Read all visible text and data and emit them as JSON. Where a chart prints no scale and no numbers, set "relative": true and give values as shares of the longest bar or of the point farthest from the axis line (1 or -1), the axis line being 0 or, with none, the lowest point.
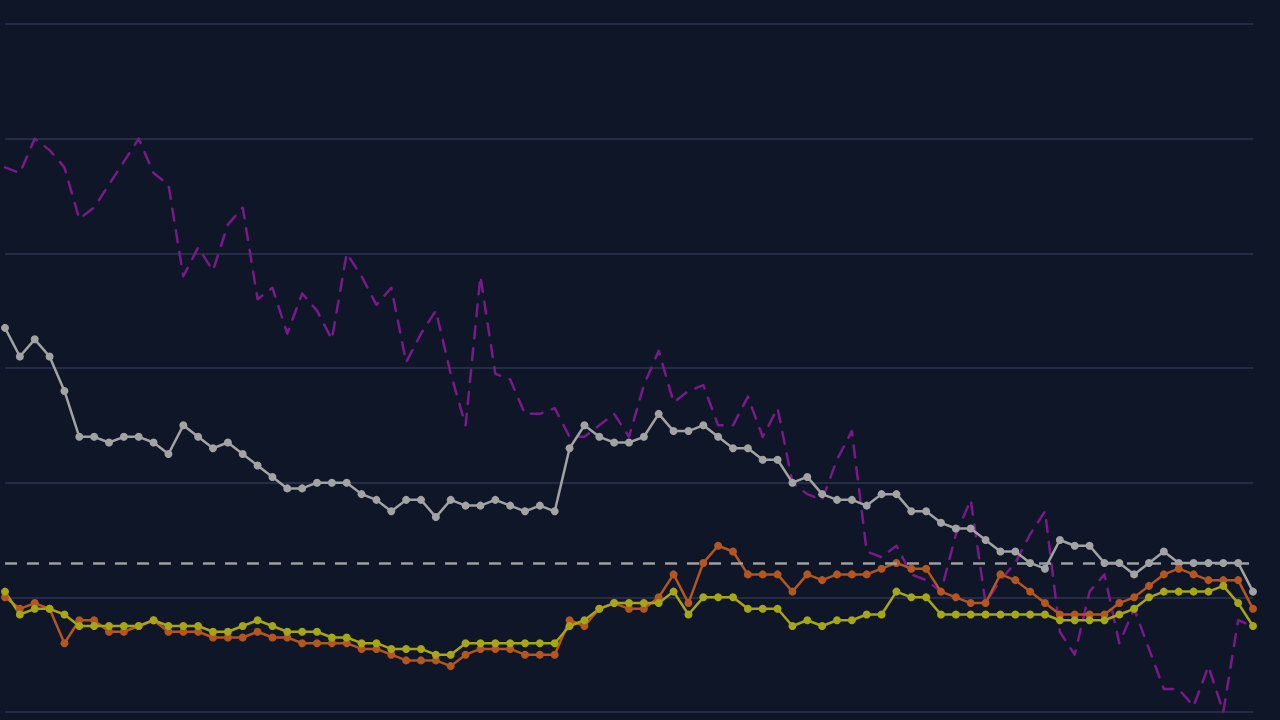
{
  "chart_data": {
    "type": "line",
    "relative": true,
    "grid": "y",
    "categories": [
      null,
      null,
      null,
      null,
      null,
      null,
      null,
      null,
      null,
      null,
      null,
      null,
      null,
      null,
      null,
      null,
      null,
      null,
      null,
      null,
      null,
      null,
      null,
      null,
      null,
      null,
      null,
      null,
      null,
      null,
      null,
      null,
      null,
      null,
      null,
      null,
      null,
      null,
      null,
      null,
      null,
      null,
      null,
      null,
      null,
      null,
      null,
      null,
      null,
      null,
      null,
      null,
      null,
      null,
      null,
      null,
      null,
      null,
      null,
      null,
      null,
      null,
      null,
      null,
      null,
      null,
      null,
      null,
      null,
      null,
      null,
      null,
      null,
      null,
      null,
      null,
      null,
      null,
      null,
      null,
      null,
      null,
      null,
      null,
      null
    ],
    "series": [
      {
        "color": "#7a1a8a",
        "line_style": "dashed",
        "marker": "none",
        "values": [
          0.95,
          0.94,
          1.0,
          0.98,
          0.95,
          0.86,
          0.88,
          0.92,
          0.96,
          1.0,
          0.94,
          0.92,
          0.76,
          0.81,
          0.77,
          0.85,
          0.88,
          0.72,
          0.74,
          0.66,
          0.73,
          0.7,
          0.65,
          0.8,
          0.76,
          0.71,
          0.74,
          0.61,
          0.66,
          0.7,
          0.59,
          0.5,
          0.76,
          0.59,
          0.58,
          0.52,
          0.52,
          0.53,
          0.48,
          0.48,
          0.5,
          0.52,
          0.48,
          0.57,
          0.63,
          0.54,
          0.56,
          0.57,
          0.5,
          0.5,
          0.55,
          0.48,
          0.53,
          0.4,
          0.38,
          0.37,
          0.44,
          0.49,
          0.28,
          0.27,
          0.29,
          0.24,
          0.23,
          0.21,
          0.31,
          0.37,
          0.19,
          0.23,
          0.26,
          0.31,
          0.35,
          0.14,
          0.1,
          0.21,
          0.24,
          0.12,
          0.18,
          0.11,
          0.04,
          0.04,
          0.01,
          0.08,
          0.0,
          0.16,
          0.15
        ]
      },
      {
        "color": "#a3a3a3",
        "line_style": "solid",
        "marker": "circle",
        "values": [
          0.67,
          0.62,
          0.65,
          0.62,
          0.56,
          0.48,
          0.48,
          0.47,
          0.48,
          0.48,
          0.47,
          0.45,
          0.5,
          0.48,
          0.46,
          0.47,
          0.45,
          0.43,
          0.41,
          0.39,
          0.39,
          0.4,
          0.4,
          0.4,
          0.38,
          0.37,
          0.35,
          0.37,
          0.37,
          0.34,
          0.37,
          0.36,
          0.36,
          0.37,
          0.36,
          0.35,
          0.36,
          0.35,
          0.46,
          0.5,
          0.48,
          0.47,
          0.47,
          0.48,
          0.52,
          0.49,
          0.49,
          0.5,
          0.48,
          0.46,
          0.46,
          0.44,
          0.44,
          0.4,
          0.41,
          0.38,
          0.37,
          0.37,
          0.36,
          0.38,
          0.38,
          0.35,
          0.35,
          0.33,
          0.32,
          0.32,
          0.3,
          0.28,
          0.28,
          0.26,
          0.25,
          0.3,
          0.29,
          0.29,
          0.26,
          0.26,
          0.24,
          0.26,
          0.28,
          0.26,
          0.26,
          0.26,
          0.26,
          0.26,
          0.21
        ]
      },
      {
        "color": "#b4561f",
        "line_style": "solid",
        "marker": "circle",
        "values": [
          0.2,
          0.18,
          0.19,
          0.18,
          0.12,
          0.16,
          0.16,
          0.14,
          0.14,
          0.15,
          0.16,
          0.14,
          0.14,
          0.14,
          0.13,
          0.13,
          0.13,
          0.14,
          0.13,
          0.13,
          0.12,
          0.12,
          0.12,
          0.12,
          0.11,
          0.11,
          0.1,
          0.09,
          0.09,
          0.09,
          0.08,
          0.1,
          0.11,
          0.11,
          0.11,
          0.1,
          0.1,
          0.1,
          0.16,
          0.15,
          0.18,
          0.19,
          0.18,
          0.18,
          0.2,
          0.24,
          0.19,
          0.26,
          0.29,
          0.28,
          0.24,
          0.24,
          0.24,
          0.21,
          0.24,
          0.23,
          0.24,
          0.24,
          0.24,
          0.25,
          0.26,
          0.25,
          0.25,
          0.21,
          0.2,
          0.19,
          0.19,
          0.24,
          0.23,
          0.21,
          0.19,
          0.17,
          0.17,
          0.17,
          0.17,
          0.19,
          0.2,
          0.22,
          0.24,
          0.25,
          0.24,
          0.23,
          0.23,
          0.23,
          0.18
        ]
      },
      {
        "color": "#a6a616",
        "line_style": "solid",
        "marker": "circle",
        "values": [
          0.21,
          0.17,
          0.18,
          0.18,
          0.17,
          0.15,
          0.15,
          0.15,
          0.15,
          0.15,
          0.16,
          0.15,
          0.15,
          0.15,
          0.14,
          0.14,
          0.15,
          0.16,
          0.15,
          0.14,
          0.14,
          0.14,
          0.13,
          0.13,
          0.12,
          0.12,
          0.11,
          0.11,
          0.11,
          0.1,
          0.1,
          0.12,
          0.12,
          0.12,
          0.12,
          0.12,
          0.12,
          0.12,
          0.15,
          0.16,
          0.18,
          0.19,
          0.19,
          0.19,
          0.19,
          0.21,
          0.17,
          0.2,
          0.2,
          0.2,
          0.18,
          0.18,
          0.18,
          0.15,
          0.16,
          0.15,
          0.16,
          0.16,
          0.17,
          0.17,
          0.21,
          0.2,
          0.2,
          0.17,
          0.17,
          0.17,
          0.17,
          0.17,
          0.17,
          0.17,
          0.17,
          0.16,
          0.16,
          0.16,
          0.16,
          0.17,
          0.18,
          0.2,
          0.21,
          0.21,
          0.21,
          0.21,
          0.22,
          0.19,
          0.15
        ]
      }
    ],
    "ref_lines": [
      {
        "axis": "y",
        "value": 0.26,
        "color": "#9e9e9e",
        "line_style": "dashed"
      }
    ]
  }
}
